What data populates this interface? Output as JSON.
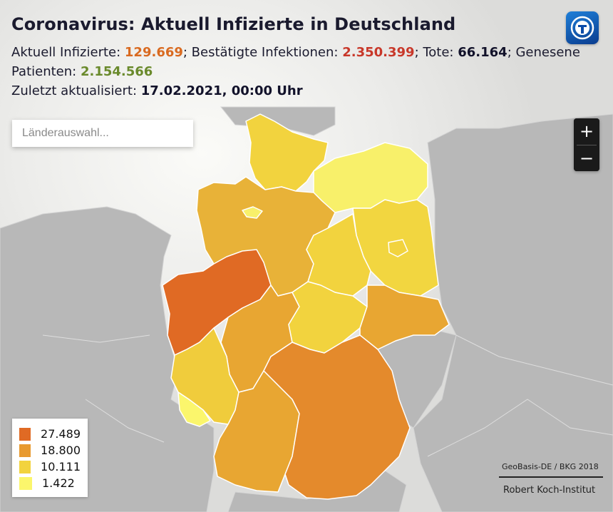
{
  "title": "Coronavirus: Aktuell Infizierte in Deutschland",
  "stats": {
    "active_label": "Aktuell Infizierte: ",
    "active_value": "129.669",
    "confirmed_label": "; Bestätigte Infektionen: ",
    "confirmed_value": "2.350.399",
    "deaths_label": "; Tote: ",
    "deaths_value": "66.164",
    "recovered_label": "; Genesene Patienten: ",
    "recovered_value": "2.154.566",
    "updated_label": "Zuletzt aktualisiert: ",
    "updated_value": "17.02.2021, 00:00 Uhr"
  },
  "search": {
    "placeholder": "Länderauswahl..."
  },
  "zoom": {
    "in_label": "+",
    "out_label": "−"
  },
  "legend": [
    {
      "label": "27.489",
      "color": "#e06a24"
    },
    {
      "label": "18.800",
      "color": "#e89a30"
    },
    {
      "label": "10.111",
      "color": "#f2d33e"
    },
    {
      "label": "1.422",
      "color": "#fbf66c"
    }
  ],
  "credits": {
    "geodata": "GeoBasis-DE / BKG 2018",
    "source": "Robert Koch-Institut"
  },
  "logo": {
    "icon": "tagesschau-logo-icon"
  },
  "states": [
    {
      "name": "Schleswig-Holstein",
      "color": "#f2d33e"
    },
    {
      "name": "Hamburg",
      "color": "#f2d33e"
    },
    {
      "name": "Mecklenburg-Vorpommern",
      "color": "#f8f06a"
    },
    {
      "name": "Niedersachsen",
      "color": "#e8b238"
    },
    {
      "name": "Bremen",
      "color": "#f8f06a"
    },
    {
      "name": "Berlin",
      "color": "#f2d33e"
    },
    {
      "name": "Brandenburg",
      "color": "#f2d640"
    },
    {
      "name": "Sachsen-Anhalt",
      "color": "#f2d33e"
    },
    {
      "name": "Nordrhein-Westfalen",
      "color": "#e06a24"
    },
    {
      "name": "Hessen",
      "color": "#e8a632"
    },
    {
      "name": "Thüringen",
      "color": "#f2d33e"
    },
    {
      "name": "Sachsen",
      "color": "#e8a632"
    },
    {
      "name": "Rheinland-Pfalz",
      "color": "#f0cc3c"
    },
    {
      "name": "Saarland",
      "color": "#fbf66c"
    },
    {
      "name": "Baden-Württemberg",
      "color": "#e8a632"
    },
    {
      "name": "Bayern",
      "color": "#e48a2c"
    }
  ]
}
